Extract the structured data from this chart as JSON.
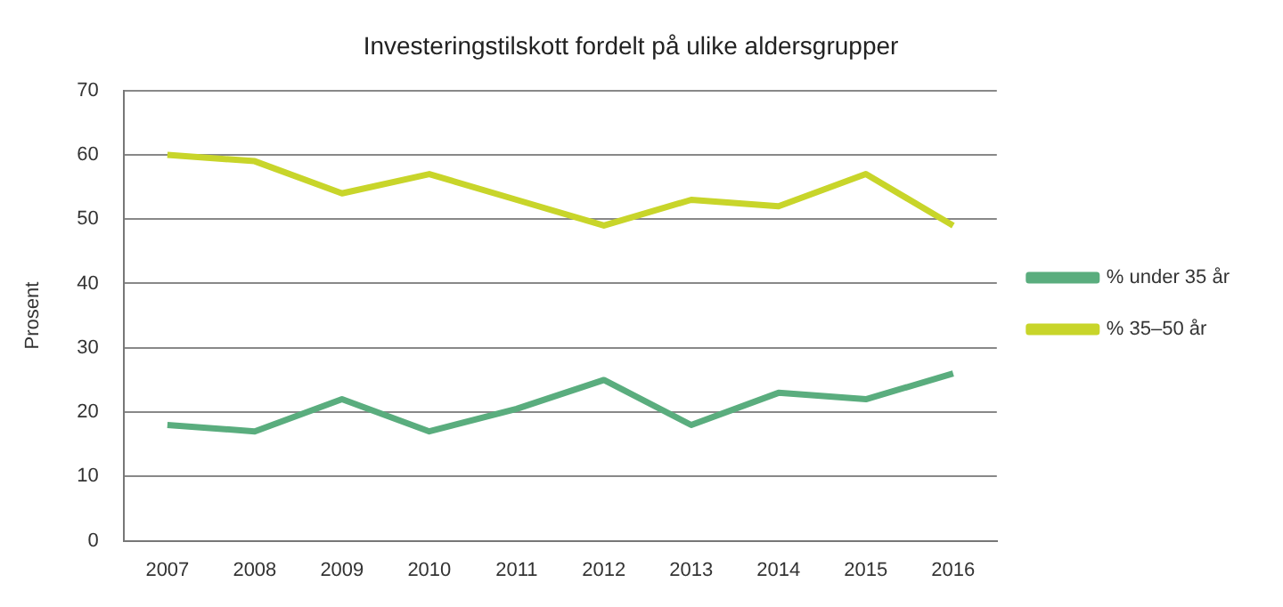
{
  "chart_data": {
    "type": "line",
    "title": "Investeringstilskott fordelt på ulike aldersgrupper",
    "ylabel": "Prosent",
    "categories": [
      "2007",
      "2008",
      "2009",
      "2010",
      "2011",
      "2012",
      "2013",
      "2014",
      "2015",
      "2016"
    ],
    "series": [
      {
        "name": "% under 35 år",
        "color": "#5aad7e",
        "values": [
          18,
          17,
          22,
          17,
          20.5,
          25,
          18,
          23,
          22,
          26
        ]
      },
      {
        "name": "% 35–50 år",
        "color": "#c8d52a",
        "values": [
          60,
          59,
          54,
          57,
          53,
          49,
          53,
          52,
          57,
          49
        ]
      }
    ],
    "ylim": [
      0,
      70
    ],
    "yticks": [
      0,
      10,
      20,
      30,
      40,
      50,
      60,
      70
    ],
    "grid": "y",
    "legend": "right",
    "marker": "none",
    "line_style": "solid"
  }
}
